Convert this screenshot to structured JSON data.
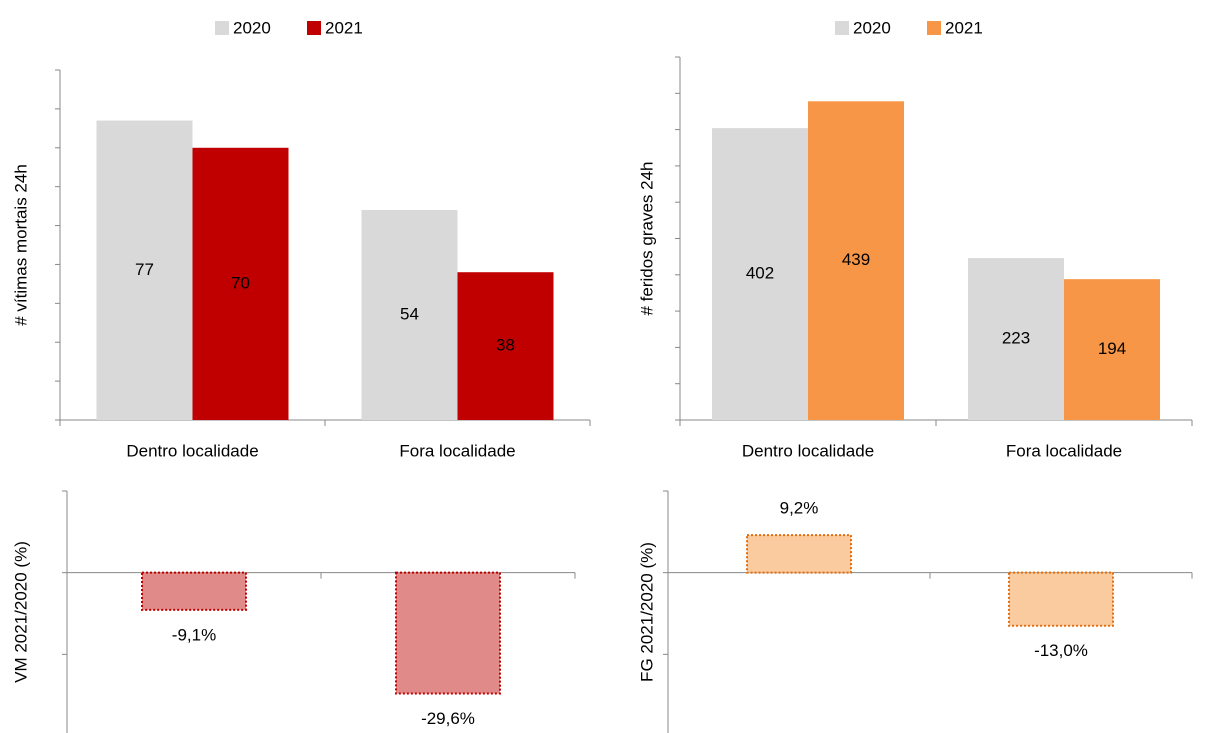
{
  "chart_data": [
    {
      "type": "bar",
      "ylabel": "# vítimas mortais 24h",
      "ylabel_color": "#c00000",
      "categories": [
        "Dentro localidade",
        "Fora localidade"
      ],
      "series": [
        {
          "name": "2020",
          "color": "#d9d9d9",
          "label_color": "#000000",
          "values": [
            77,
            54
          ]
        },
        {
          "name": "2021",
          "color": "#c00000",
          "label_color": "#ffffff",
          "values": [
            70,
            38
          ]
        }
      ],
      "ylim": [
        0,
        90
      ],
      "yticks": [
        0,
        10,
        20,
        30,
        40,
        50,
        60,
        70,
        80,
        90
      ]
    },
    {
      "type": "bar",
      "ylabel": "# feridos graves 24h",
      "ylabel_color": "#e46c0a",
      "categories": [
        "Dentro localidade",
        "Fora localidade"
      ],
      "series": [
        {
          "name": "2020",
          "color": "#d9d9d9",
          "label_color": "#000000",
          "values": [
            402,
            223
          ]
        },
        {
          "name": "2021",
          "color": "#f79646",
          "label_color": "#ffffff",
          "values": [
            439,
            194
          ]
        }
      ],
      "ylim": [
        0,
        500
      ],
      "yticks": [
        0,
        50,
        100,
        150,
        200,
        250,
        300,
        350,
        400,
        450,
        500
      ]
    },
    {
      "type": "change",
      "ylabel": "VM 2021/2020 (%)",
      "ylabel_color": "#c00000",
      "values": [
        -9.1,
        -29.6
      ],
      "value_labels": [
        "-9,1%",
        "-29,6%"
      ],
      "color": "#e08a8a",
      "edge_color": "#c00000",
      "label_color": "#c00000",
      "ylim": [
        -40,
        20
      ],
      "yticks": [
        -40,
        -20,
        0,
        20
      ]
    },
    {
      "type": "change",
      "ylabel": "FG 2021/2020 (%)",
      "ylabel_color": "#e46c0a",
      "values": [
        9.2,
        -13.0
      ],
      "value_labels": [
        "9,2%",
        "-13,0%"
      ],
      "color": "#fbcba0",
      "edge_color": "#e46c0a",
      "label_color": "#e46c0a",
      "ylim": [
        -40,
        20
      ],
      "yticks": [
        -40,
        -20,
        0,
        20
      ]
    }
  ]
}
